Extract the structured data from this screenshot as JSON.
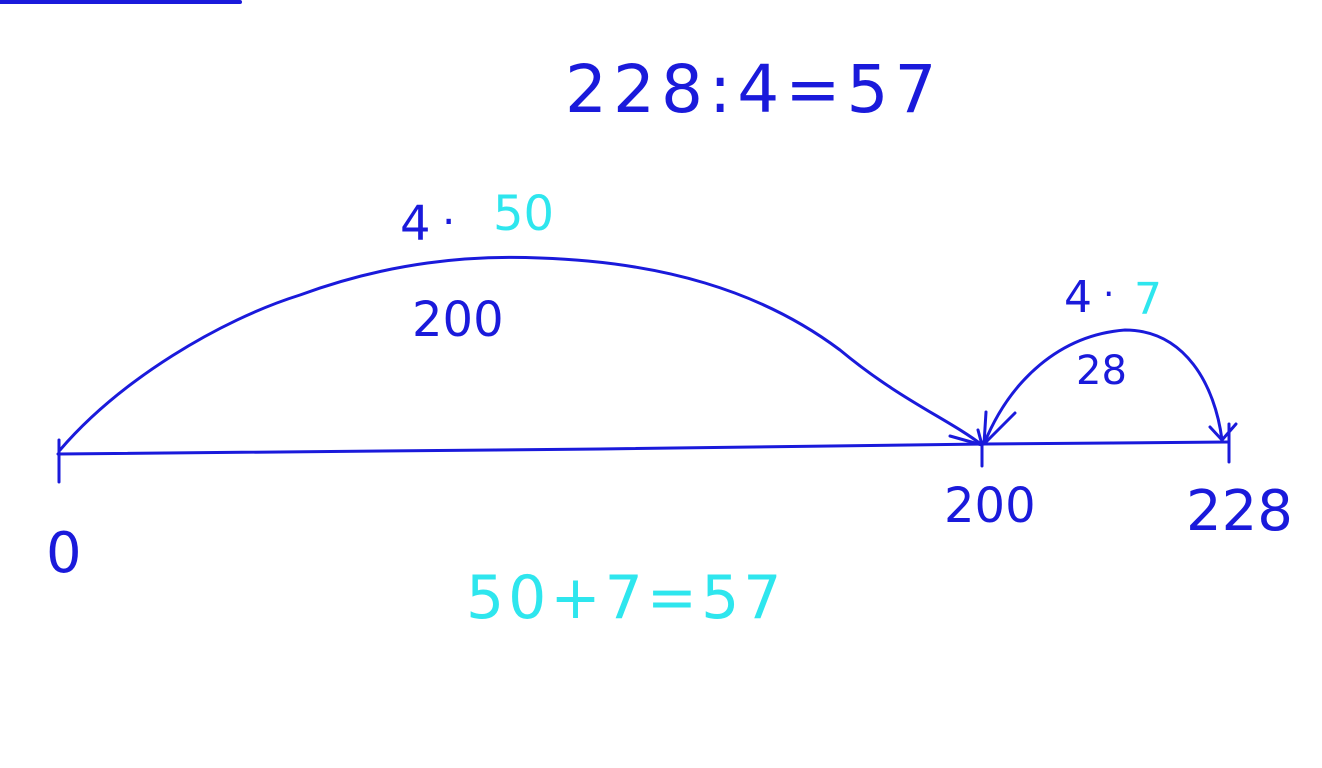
{
  "colors": {
    "ink": "#1a1adb",
    "accent": "#2ee6ee",
    "background": "#ffffff"
  },
  "equation": {
    "text": "228:4=57"
  },
  "big_jump": {
    "factor": "4",
    "dot": "·",
    "multiplier": "50",
    "product": "200"
  },
  "small_jump": {
    "factor": "4",
    "dot": "·",
    "multiplier": "7",
    "product": "28"
  },
  "number_line": {
    "start_label": "0",
    "mid_label": "200",
    "end_label": "228"
  },
  "sum": {
    "text": "50+7=57"
  }
}
